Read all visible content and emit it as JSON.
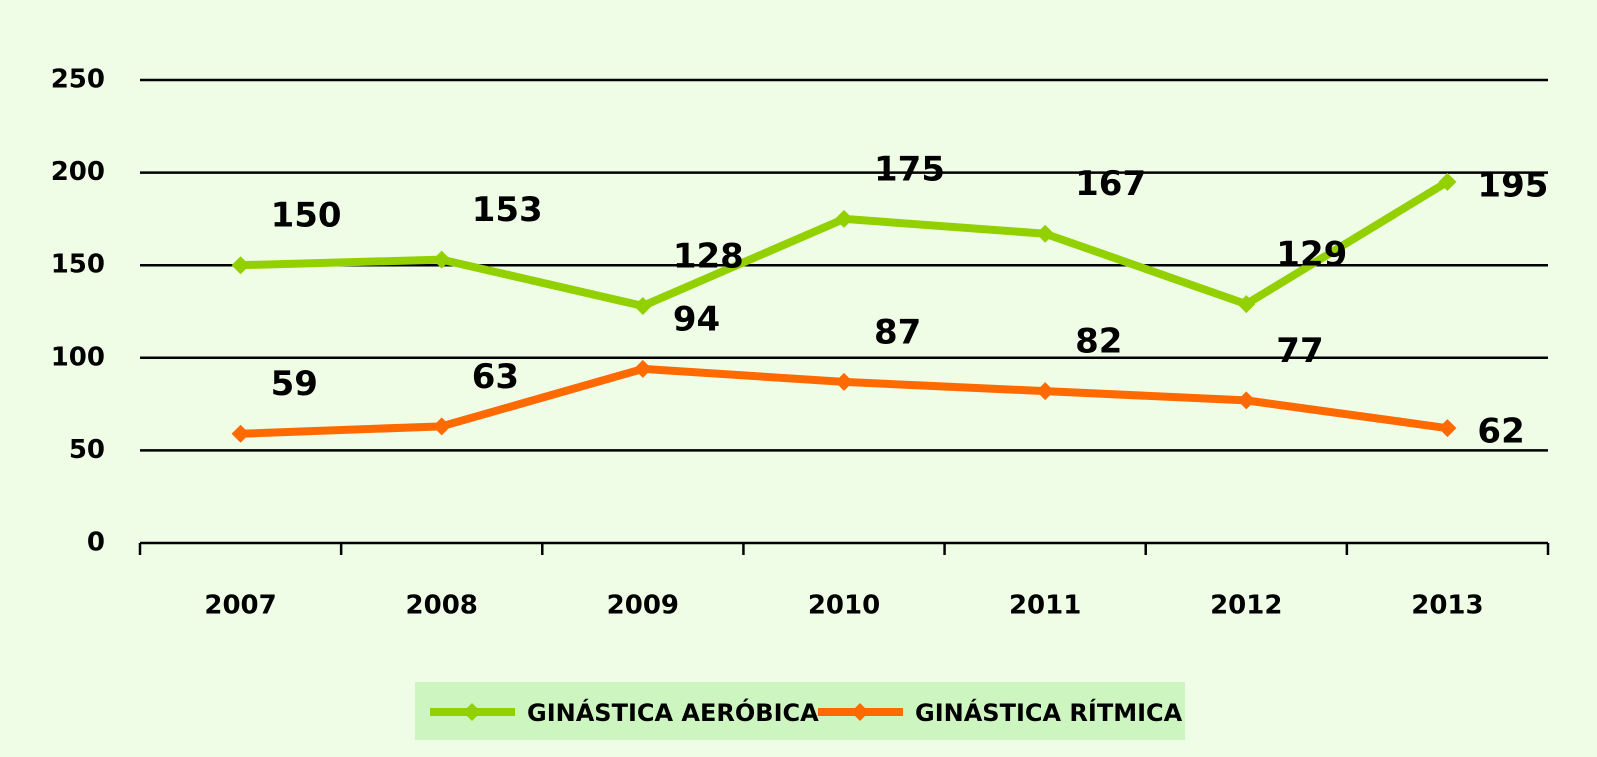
{
  "chart_data": {
    "type": "line",
    "categories": [
      "2007",
      "2008",
      "2009",
      "2010",
      "2011",
      "2012",
      "2013"
    ],
    "series": [
      {
        "name": "GINÁSTICA AERÓBICA",
        "color": "#92d000",
        "values": [
          150,
          153,
          128,
          175,
          167,
          129,
          195
        ]
      },
      {
        "name": "GINÁSTICA RÍTMICA",
        "color": "#ff6a00",
        "values": [
          59,
          63,
          94,
          87,
          82,
          77,
          62
        ]
      }
    ],
    "ylim": [
      0,
      250
    ],
    "yticks": [
      0,
      50,
      100,
      150,
      200,
      250
    ],
    "grid": true,
    "legend": "bottom"
  }
}
